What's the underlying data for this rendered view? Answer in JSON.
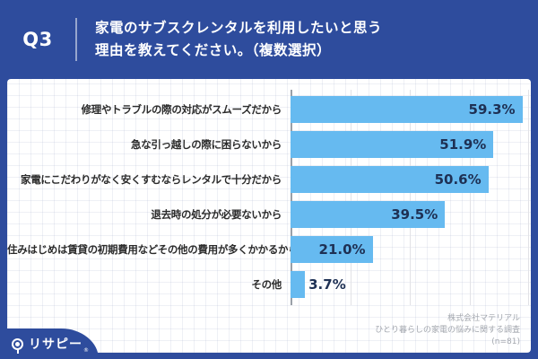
{
  "header": {
    "question_number": "Q3",
    "title_line1": "家電のサブスクレンタルを利用したいと思う",
    "title_line2": "理由を教えてください。（複数選択）"
  },
  "chart_data": {
    "type": "bar",
    "orientation": "horizontal",
    "title": "家電のサブスクレンタルを利用したいと思う理由を教えてください。（複数選択）",
    "categories": [
      "修理やトラブルの際の対応がスムーズだから",
      "急な引っ越しの際に困らないから",
      "家電にこだわりがなく安くすむならレンタルで十分だから",
      "退去時の処分が必要ないから",
      "住みはじめは賃貸の初期費用などその他の費用が多くかかるから",
      "その他"
    ],
    "values": [
      59.3,
      51.9,
      50.6,
      39.5,
      21.0,
      3.7
    ],
    "value_labels": [
      "59.3%",
      "51.9%",
      "50.6%",
      "39.5%",
      "21.0%",
      "3.7%"
    ],
    "xlim": [
      0,
      61
    ],
    "grid": true,
    "legend_position": "none",
    "bar_color": "#66BAF0"
  },
  "footer": {
    "logo_text": "リサピー",
    "logo_mark": "®",
    "credit_lines": [
      "株式会社マテリアル",
      "ひとり暮らしの家電の悩みに関する調査",
      "(n=81)"
    ]
  },
  "colors": {
    "background": "#2E4C9D",
    "bar": "#66BAF0",
    "value_text": "#1E3054",
    "label_text": "#2B2B2B",
    "credit_text": "#A3A7AE"
  }
}
